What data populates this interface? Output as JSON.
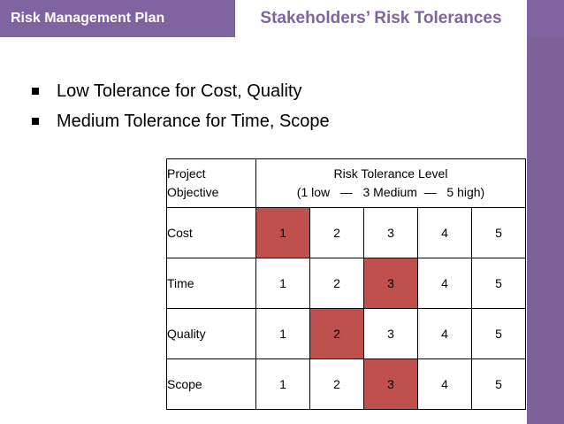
{
  "header": {
    "left_tab": "Risk Management Plan",
    "right_tab": "Stakeholders’ Risk Tolerances"
  },
  "bullets": [
    "Low Tolerance for Cost, Quality",
    "Medium Tolerance for Time, Scope"
  ],
  "table": {
    "header_objective_line1": "Project",
    "header_objective_line2": "Objective",
    "header_level_line1": "Risk Tolerance Level",
    "header_level_line2": "(1 low   —   3 Medium  —   5 high)",
    "levels": [
      "1",
      "2",
      "3",
      "4",
      "5"
    ],
    "rows": [
      {
        "objective": "Cost",
        "tolerance": 1
      },
      {
        "objective": "Time",
        "tolerance": 3
      },
      {
        "objective": "Quality",
        "tolerance": 2
      },
      {
        "objective": "Scope",
        "tolerance": 3
      }
    ]
  },
  "colors": {
    "accent": "#8064a2",
    "highlight": "#c0504d"
  }
}
